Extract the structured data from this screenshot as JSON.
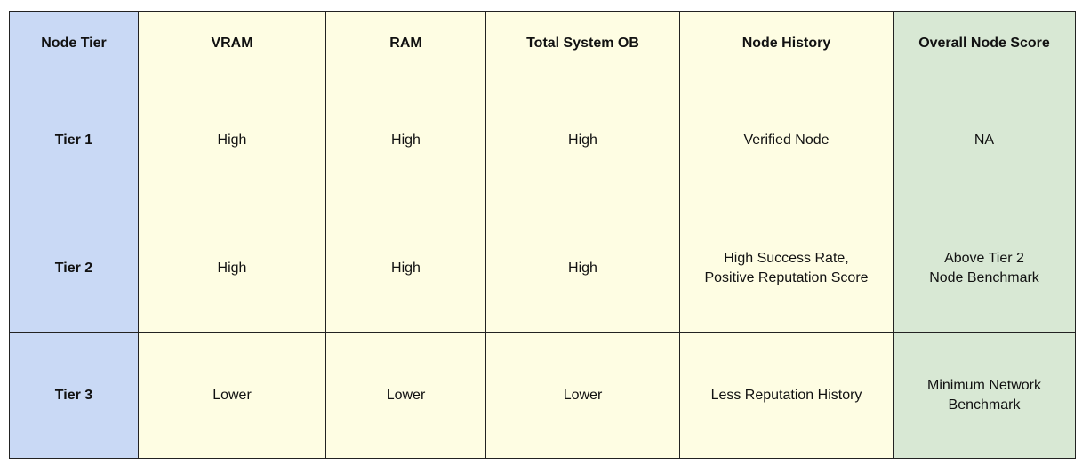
{
  "headers": [
    "Node Tier",
    "VRAM",
    "RAM",
    "Total System OB",
    "Node History",
    "Overall Node Score"
  ],
  "rows": [
    {
      "tier": "Tier 1",
      "vram": "High",
      "ram": "High",
      "total": "High",
      "history": "Verified Node",
      "score": "NA"
    },
    {
      "tier": "Tier 2",
      "vram": "High",
      "ram": "High",
      "total": "High",
      "history": "High Success Rate,\nPositive Reputation Score",
      "score": "Above Tier 2\nNode Benchmark"
    },
    {
      "tier": "Tier 3",
      "vram": "Lower",
      "ram": "Lower",
      "total": "Lower",
      "history": "Less Reputation History",
      "score": "Minimum Network\nBenchmark"
    }
  ],
  "colors": {
    "tier_column": "#c9d9f5",
    "middle_columns": "#fefde3",
    "score_column": "#d8e8d4",
    "border": "#222222"
  }
}
